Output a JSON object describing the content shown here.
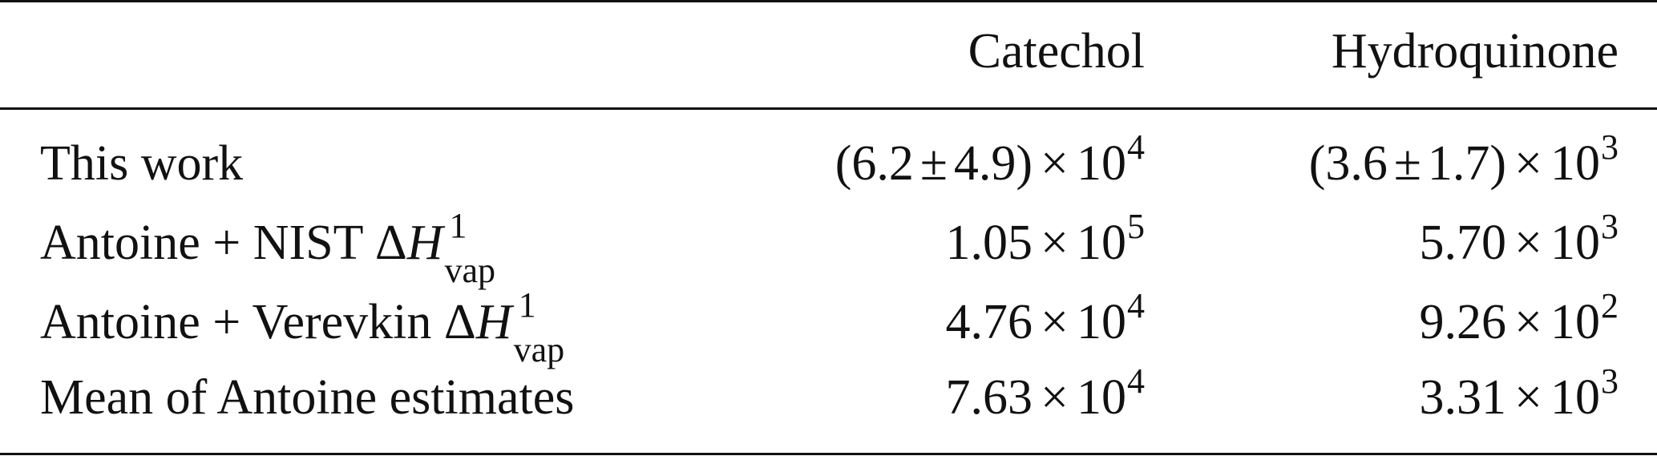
{
  "table": {
    "headers": [
      "",
      "Catechol",
      "Hydroquinone"
    ],
    "rows": [
      {
        "label": "This work",
        "catechol": {
          "pre": "(6.2",
          "pm": "±",
          "post": "4.9)",
          "times": "×",
          "base": "10",
          "exp": "4"
        },
        "hydroquinone": {
          "pre": "(3.6",
          "pm": "±",
          "post": "1.7)",
          "times": "×",
          "base": "10",
          "exp": "3"
        }
      },
      {
        "label_prefix": "Antoine + NIST",
        "delta": "Δ",
        "H": "H",
        "sup": "1",
        "sub": "vap",
        "catechol": {
          "mantissa": "1.05",
          "times": "×",
          "base": "10",
          "exp": "5"
        },
        "hydroquinone": {
          "mantissa": "5.70",
          "times": "×",
          "base": "10",
          "exp": "3"
        }
      },
      {
        "label_prefix": "Antoine + Verevkin",
        "delta": "Δ",
        "H": "H",
        "sup": "1",
        "sub": "vap",
        "catechol": {
          "mantissa": "4.76",
          "times": "×",
          "base": "10",
          "exp": "4"
        },
        "hydroquinone": {
          "mantissa": "9.26",
          "times": "×",
          "base": "10",
          "exp": "2"
        }
      },
      {
        "label": "Mean of Antoine estimates",
        "catechol": {
          "mantissa": "7.63",
          "times": "×",
          "base": "10",
          "exp": "4"
        },
        "hydroquinone": {
          "mantissa": "3.31",
          "times": "×",
          "base": "10",
          "exp": "3"
        }
      }
    ]
  }
}
